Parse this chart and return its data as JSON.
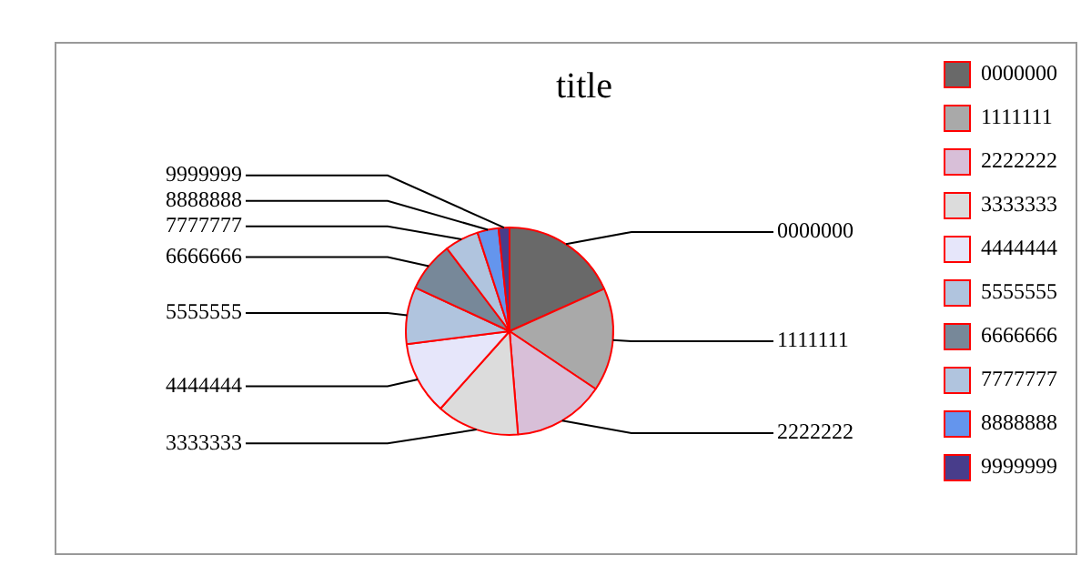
{
  "chart_data": {
    "type": "pie",
    "title": "title",
    "categories": [
      "0000000",
      "1111111",
      "2222222",
      "3333333",
      "4444444",
      "5555555",
      "6666666",
      "7777777",
      "8888888",
      "9999999"
    ],
    "values": [
      18.3,
      16.1,
      14.3,
      12.9,
      11.4,
      8.9,
      7.8,
      5.3,
      3.3,
      1.7
    ],
    "colors": [
      "#696969",
      "#a9a9a9",
      "#d8bfd8",
      "#dcdcdc",
      "#e6e6fa",
      "#b0c4de",
      "#778899",
      "#b0c4de",
      "#6495ed",
      "#483d8b"
    ],
    "legend": "right"
  }
}
